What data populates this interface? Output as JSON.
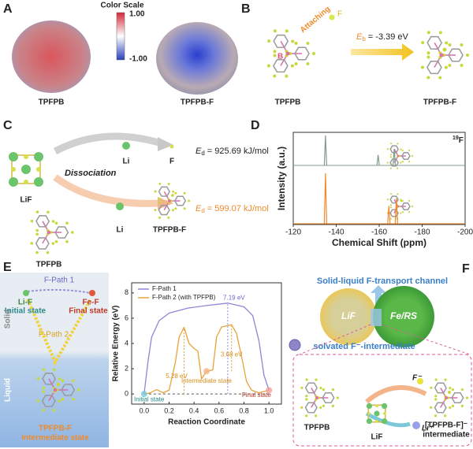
{
  "panels": {
    "A": {
      "label": "A",
      "colorbar": {
        "title": "Color Scale",
        "max": "1.00",
        "min": "-1.00"
      },
      "molecules": [
        "TPFPB",
        "TPFPB-F"
      ]
    },
    "B": {
      "label": "B",
      "attaching": "Attaching",
      "atom_f": "F",
      "atom_b": "B",
      "reactant": "TPFPB",
      "product": "TPFPB-F",
      "energy_symbol": "E",
      "energy_subscript": "b",
      "energy_value": "= -3.39 eV"
    },
    "C": {
      "label": "C",
      "dissociation": "Dissociation",
      "reactant": "LiF",
      "additive": "TPFPB",
      "path1": {
        "li": "Li",
        "f": "F",
        "symbol": "E",
        "subscript": "d",
        "value": "= 925.69 kJ/mol"
      },
      "path2": {
        "li": "Li",
        "product": "TPFPB-F",
        "symbol": "E",
        "subscript": "d",
        "value": "= 599.07 kJ/mol"
      }
    },
    "D": {
      "label": "D"
    },
    "E": {
      "label": "E",
      "scheme": {
        "path1": "F-Path 1",
        "start": "Li-F",
        "start_state": "Initial state",
        "end": "Fe-F",
        "end_state": "Final state",
        "solid": "Solid",
        "path2": "F-Path 2",
        "liquid": "Liquid",
        "middle": "TPFPB-F",
        "middle_state": "Intermediate state"
      }
    },
    "F": {
      "label": "F",
      "channel": "Solid-liquid F-transport channel",
      "lif": "LiF",
      "ferS": "Fe/RS",
      "solvated": "solvated F⁻-intermediate",
      "tpfpb": "TPFPB",
      "lif2": "LiF",
      "complex": "[TPFPB-F]⁻",
      "complex_note": "intermediate",
      "fion": "F⁻",
      "liion": "Li⁺"
    }
  },
  "chart_data": [
    {
      "type": "spectrum",
      "xlabel": "Chemical Shift (ppm)",
      "ylabel": "Intensity (a.u.)",
      "nucleus_mass": "19",
      "nucleus": "F",
      "xlim": [
        -120,
        -200
      ],
      "xticks": [
        -120,
        -140,
        -160,
        -180,
        -200
      ],
      "ylim": [
        0,
        1
      ],
      "series": [
        {
          "color": "#7f9c8f",
          "x": [
            -135,
            -159.5,
            -167
          ],
          "values": [
            1,
            0.35,
            0.55
          ]
        },
        {
          "color": "#f0892a",
          "x": [
            -135,
            -164.5,
            -168
          ],
          "values": [
            1,
            0.35,
            0.5
          ]
        }
      ]
    },
    {
      "type": "line",
      "xlabel": "Reaction Coordinate",
      "ylabel": "Relative Energy (eV)",
      "xlim": [
        -0.1,
        1.1
      ],
      "ylim": [
        -0.8,
        8.8
      ],
      "xticks": [
        {
          "value": 0,
          "label": "0.0"
        },
        {
          "value": 0.2,
          "label": "0.2"
        },
        {
          "value": 0.4,
          "label": "0.4"
        },
        {
          "value": 0.6,
          "label": "0.6"
        },
        {
          "value": 0.8,
          "label": "0.8"
        },
        {
          "value": 1,
          "label": "1.0"
        }
      ],
      "yticks": [
        0,
        2,
        4,
        6,
        8
      ],
      "legend": "upper left",
      "series": [
        {
          "name": "F-Path 1",
          "color": "#8d87d6",
          "x": [
            0,
            0.03,
            0.06,
            0.12,
            0.2,
            0.35,
            0.5,
            0.67,
            0.8,
            0.87,
            0.92,
            0.96,
            1.0
          ],
          "values": [
            0,
            2.5,
            4.5,
            5.8,
            6.4,
            6.8,
            7.0,
            7.19,
            6.9,
            6.2,
            4.2,
            1.5,
            0.3
          ]
        },
        {
          "name": "F-Path 2 (with TPFPB)",
          "color": "#e8a33a",
          "x": [
            0,
            0.05,
            0.1,
            0.15,
            0.2,
            0.25,
            0.28,
            0.32,
            0.36,
            0.4,
            0.43,
            0.46,
            0.5,
            0.55,
            0.58,
            0.62,
            0.7,
            0.74,
            0.78,
            0.82,
            0.86,
            0.92,
            1.0
          ],
          "values": [
            0,
            0.1,
            0.35,
            0.1,
            0.3,
            2.5,
            4.5,
            5.28,
            4.0,
            3.6,
            3.4,
            1.2,
            1.8,
            1.9,
            4.5,
            5.3,
            5.48,
            4.8,
            3.0,
            1.0,
            0.3,
            0.1,
            0.3
          ]
        }
      ],
      "annotations": [
        "7.19 eV",
        "5.28 eV",
        "3.68 eV",
        "Initial state",
        "Intermediate state",
        "Final state"
      ]
    }
  ]
}
